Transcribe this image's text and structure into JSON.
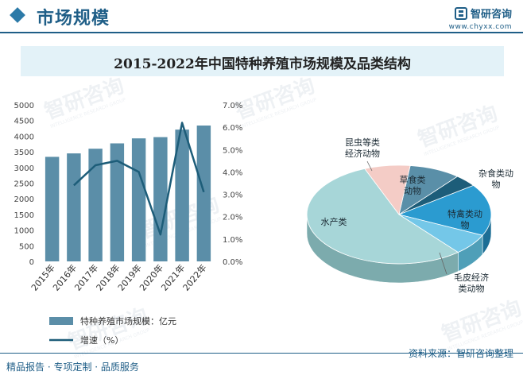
{
  "header": {
    "title": "市场规模",
    "brand_name": "智研咨询",
    "brand_url": "www.chyxx.com"
  },
  "colors": {
    "brand": "#1f5e87",
    "bar": "#5b8ea8",
    "line": "#1d5d79",
    "pie_top": [
      "#5a8fa8",
      "#1d5d79",
      "#2b9bd0",
      "#74c7e8",
      "#a7d6d8",
      "#f4ccc6"
    ],
    "pie_side": [
      "#41697b",
      "#133f53",
      "#1d6e95",
      "#4f9fb8",
      "#7cabad",
      "#c8a4a0"
    ]
  },
  "chart_data": [
    {
      "type": "bar+line",
      "title": "2015-2022年中国特种养殖市场规模及品类结构",
      "categories": [
        "2015年",
        "2016年",
        "2017年",
        "2018年",
        "2019年",
        "2020年",
        "2021年",
        "2022年"
      ],
      "series": [
        {
          "name": "特种养殖市场规模：亿元",
          "type": "bar",
          "axis": "left",
          "values": [
            3340,
            3450,
            3600,
            3770,
            3930,
            3970,
            4210,
            4340
          ]
        },
        {
          "name": "增速（%）",
          "type": "line",
          "axis": "right",
          "values": [
            null,
            3.4,
            4.3,
            4.5,
            4.0,
            1.2,
            6.2,
            3.1
          ]
        }
      ],
      "y_left": {
        "min": 0,
        "max": 5000,
        "step": 500,
        "ticks": [
          "0",
          "500",
          "1000",
          "1500",
          "2000",
          "2500",
          "3000",
          "3500",
          "4000",
          "4500",
          "5000"
        ]
      },
      "y_right": {
        "min": 0,
        "max": 7,
        "step": 1,
        "ticks": [
          "0.0%",
          "1.0%",
          "2.0%",
          "3.0%",
          "4.0%",
          "5.0%",
          "6.0%",
          "7.0%"
        ]
      },
      "legend": [
        "特种养殖市场规模：亿元",
        "增速（%）"
      ],
      "grid": false
    },
    {
      "type": "pie",
      "style": "3d",
      "slices": [
        {
          "label": "草食类动物",
          "lines": [
            "草食类",
            "动物"
          ],
          "value": 9
        },
        {
          "label": "杂食类动物",
          "lines": [
            "杂食类动",
            "物"
          ],
          "value": 4
        },
        {
          "label": "特禽类动物",
          "lines": [
            "特禽类动",
            "物"
          ],
          "value": 17
        },
        {
          "label": "毛皮经济类动物",
          "lines": [
            "毛皮经济",
            "类动物"
          ],
          "value": 7
        },
        {
          "label": "水产类",
          "lines": [
            "水产类"
          ],
          "value": 55
        },
        {
          "label": "昆虫等类经济动物",
          "lines": [
            "昆虫等类",
            "经济动物"
          ],
          "value": 8
        }
      ]
    }
  ],
  "footer": {
    "left": "精品报告 · 专项定制 · 品质服务",
    "right": "资料来源：智研咨询整理"
  },
  "watermark": {
    "text": "智研咨询",
    "subtext": "INTELLIGENCE RESEARCH GROUP"
  }
}
